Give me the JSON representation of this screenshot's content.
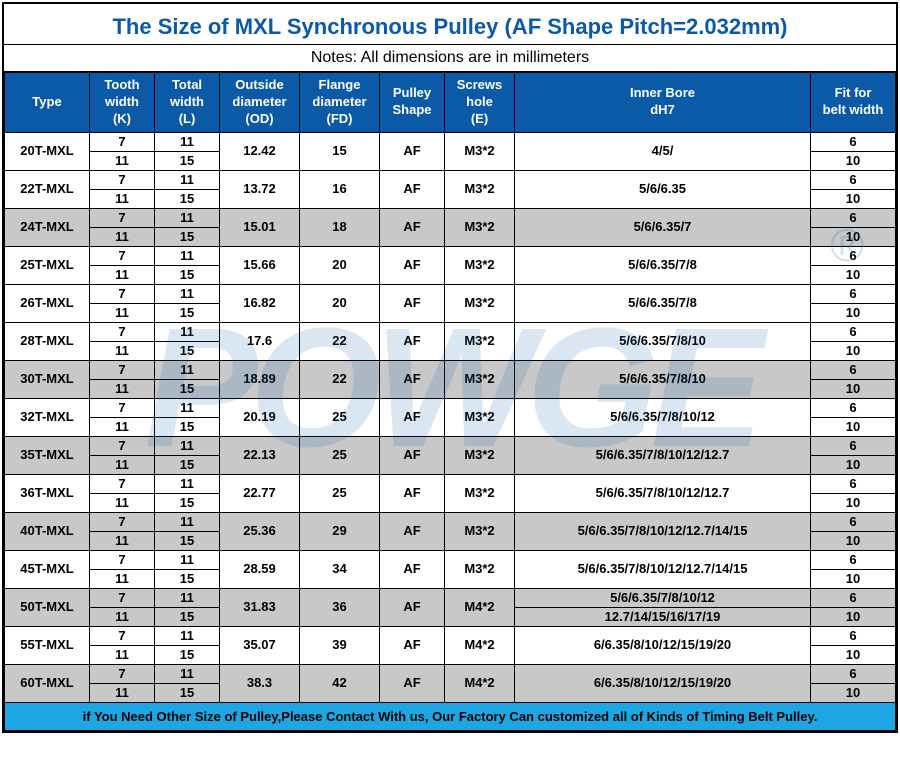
{
  "title": "The Size of MXL Synchronous Pulley (AF Shape Pitch=2.032mm)",
  "notes": "Notes: All dimensions are in millimeters",
  "watermark_text": "POWGE",
  "reg_symbol": "®",
  "headers": {
    "type": "Type",
    "tooth_width": "Tooth<br>width<br>(K)",
    "total_width": "Total<br>width<br>(L)",
    "outside_diameter": "Outside<br>diameter<br>(OD)",
    "flange_diameter": "Flange<br>diameter<br>(FD)",
    "pulley_shape": "Pulley<br>Shape",
    "screws_hole": "Screws<br>hole<br>(E)",
    "inner_bore": "Inner Bore<br>dH7",
    "fit_belt": "Fit for<br>belt width"
  },
  "footer": "if You Need Other Size of Pulley,Please Contact With us, Our Factory Can customized all of Kinds of Timing Belt Pulley.",
  "rows": [
    {
      "type": "20T-MXL",
      "shade": false,
      "k": [
        "7",
        "11"
      ],
      "l": [
        "11",
        "15"
      ],
      "od": "12.42",
      "fd": "15",
      "shape": "AF",
      "e": "M3*2",
      "bore": [
        "4/5/"
      ],
      "fit": [
        "6",
        "10"
      ]
    },
    {
      "type": "22T-MXL",
      "shade": false,
      "k": [
        "7",
        "11"
      ],
      "l": [
        "11",
        "15"
      ],
      "od": "13.72",
      "fd": "16",
      "shape": "AF",
      "e": "M3*2",
      "bore": [
        "5/6/6.35"
      ],
      "fit": [
        "6",
        "10"
      ]
    },
    {
      "type": "24T-MXL",
      "shade": true,
      "k": [
        "7",
        "11"
      ],
      "l": [
        "11",
        "15"
      ],
      "od": "15.01",
      "fd": "18",
      "shape": "AF",
      "e": "M3*2",
      "bore": [
        "5/6/6.35/7"
      ],
      "fit": [
        "6",
        "10"
      ]
    },
    {
      "type": "25T-MXL",
      "shade": false,
      "k": [
        "7",
        "11"
      ],
      "l": [
        "11",
        "15"
      ],
      "od": "15.66",
      "fd": "20",
      "shape": "AF",
      "e": "M3*2",
      "bore": [
        "5/6/6.35/7/8"
      ],
      "fit": [
        "6",
        "10"
      ]
    },
    {
      "type": "26T-MXL",
      "shade": false,
      "k": [
        "7",
        "11"
      ],
      "l": [
        "11",
        "15"
      ],
      "od": "16.82",
      "fd": "20",
      "shape": "AF",
      "e": "M3*2",
      "bore": [
        "5/6/6.35/7/8"
      ],
      "fit": [
        "6",
        "10"
      ]
    },
    {
      "type": "28T-MXL",
      "shade": false,
      "k": [
        "7",
        "11"
      ],
      "l": [
        "11",
        "15"
      ],
      "od": "17.6",
      "fd": "22",
      "shape": "AF",
      "e": "M3*2",
      "bore": [
        "5/6/6.35/7/8/10"
      ],
      "fit": [
        "6",
        "10"
      ]
    },
    {
      "type": "30T-MXL",
      "shade": true,
      "k": [
        "7",
        "11"
      ],
      "l": [
        "11",
        "15"
      ],
      "od": "18.89",
      "fd": "22",
      "shape": "AF",
      "e": "M3*2",
      "bore": [
        "5/6/6.35/7/8/10"
      ],
      "fit": [
        "6",
        "10"
      ]
    },
    {
      "type": "32T-MXL",
      "shade": false,
      "k": [
        "7",
        "11"
      ],
      "l": [
        "11",
        "15"
      ],
      "od": "20.19",
      "fd": "25",
      "shape": "AF",
      "e": "M3*2",
      "bore": [
        "5/6/6.35/7/8/10/12"
      ],
      "fit": [
        "6",
        "10"
      ]
    },
    {
      "type": "35T-MXL",
      "shade": true,
      "k": [
        "7",
        "11"
      ],
      "l": [
        "11",
        "15"
      ],
      "od": "22.13",
      "fd": "25",
      "shape": "AF",
      "e": "M3*2",
      "bore": [
        "5/6/6.35/7/8/10/12/12.7"
      ],
      "fit": [
        "6",
        "10"
      ]
    },
    {
      "type": "36T-MXL",
      "shade": false,
      "k": [
        "7",
        "11"
      ],
      "l": [
        "11",
        "15"
      ],
      "od": "22.77",
      "fd": "25",
      "shape": "AF",
      "e": "M3*2",
      "bore": [
        "5/6/6.35/7/8/10/12/12.7"
      ],
      "fit": [
        "6",
        "10"
      ]
    },
    {
      "type": "40T-MXL",
      "shade": true,
      "k": [
        "7",
        "11"
      ],
      "l": [
        "11",
        "15"
      ],
      "od": "25.36",
      "fd": "29",
      "shape": "AF",
      "e": "M3*2",
      "bore": [
        "5/6/6.35/7/8/10/12/12.7/14/15"
      ],
      "fit": [
        "6",
        "10"
      ]
    },
    {
      "type": "45T-MXL",
      "shade": false,
      "k": [
        "7",
        "11"
      ],
      "l": [
        "11",
        "15"
      ],
      "od": "28.59",
      "fd": "34",
      "shape": "AF",
      "e": "M3*2",
      "bore": [
        "5/6/6.35/7/8/10/12/12.7/14/15"
      ],
      "fit": [
        "6",
        "10"
      ]
    },
    {
      "type": "50T-MXL",
      "shade": true,
      "k": [
        "7",
        "11"
      ],
      "l": [
        "11",
        "15"
      ],
      "od": "31.83",
      "fd": "36",
      "shape": "AF",
      "e": "M4*2",
      "bore": [
        "5/6/6.35/7/8/10/12",
        "12.7/14/15/16/17/19"
      ],
      "fit": [
        "6",
        "10"
      ]
    },
    {
      "type": "55T-MXL",
      "shade": false,
      "k": [
        "7",
        "11"
      ],
      "l": [
        "11",
        "15"
      ],
      "od": "35.07",
      "fd": "39",
      "shape": "AF",
      "e": "M4*2",
      "bore": [
        "6/6.35/8/10/12/15/19/20"
      ],
      "fit": [
        "6",
        "10"
      ]
    },
    {
      "type": "60T-MXL",
      "shade": true,
      "k": [
        "7",
        "11"
      ],
      "l": [
        "11",
        "15"
      ],
      "od": "38.3",
      "fd": "42",
      "shape": "AF",
      "e": "M4*2",
      "bore": [
        "6/6.35/8/10/12/15/19/20"
      ],
      "fit": [
        "6",
        "10"
      ]
    }
  ],
  "colors": {
    "header_bg": "#0a5aa8",
    "header_fg": "#ffffff",
    "shade_bg": "#c8c8c8",
    "footer_bg": "#1ea6e2",
    "title_color": "#0a5aa8",
    "border": "#000000"
  }
}
